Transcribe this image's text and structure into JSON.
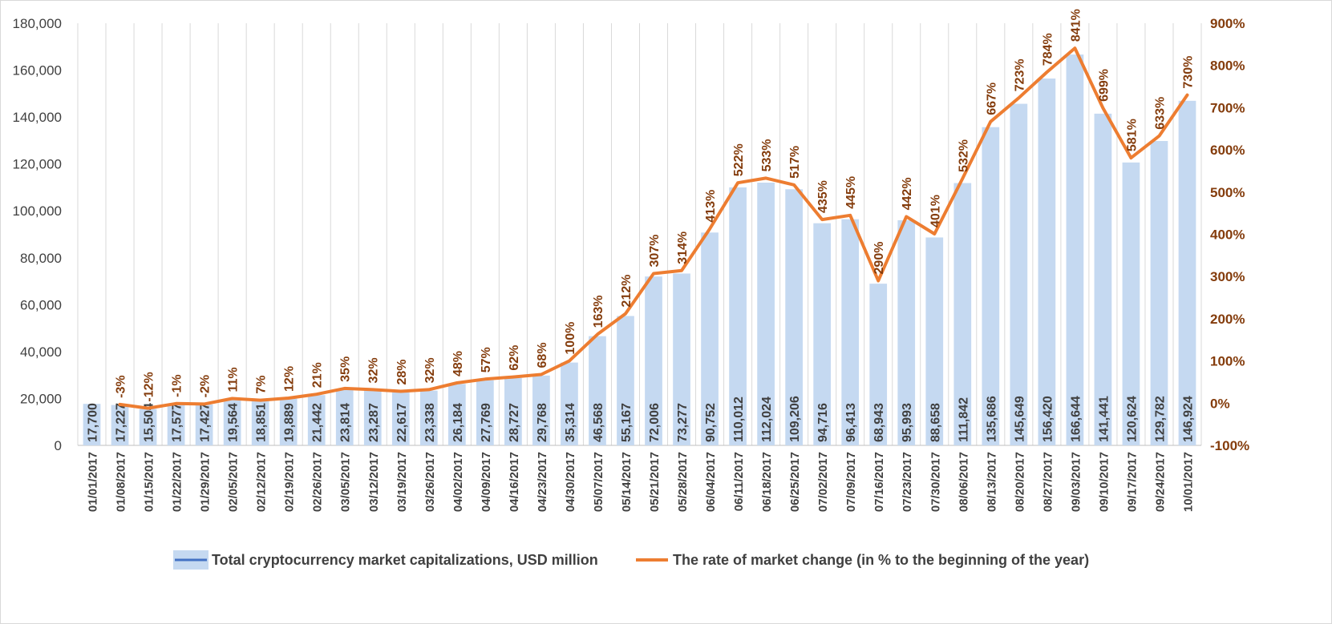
{
  "chart_data": {
    "type": "bar",
    "categories": [
      "01/01/2017",
      "01/08/2017",
      "01/15/2017",
      "01/22/2017",
      "01/29/2017",
      "02/05/2017",
      "02/12/2017",
      "02/19/2017",
      "02/26/2017",
      "03/05/2017",
      "03/12/2017",
      "03/19/2017",
      "03/26/2017",
      "04/02/2017",
      "04/09/2017",
      "04/16/2017",
      "04/23/2017",
      "04/30/2017",
      "05/07/2017",
      "05/14/2017",
      "05/21/2017",
      "05/28/2017",
      "06/04/2017",
      "06/11/2017",
      "06/18/2017",
      "06/25/2017",
      "07/02/2017",
      "07/09/2017",
      "07/16/2017",
      "07/23/2017",
      "07/30/2017",
      "08/06/2017",
      "08/13/2017",
      "08/20/2017",
      "08/27/2017",
      "09/03/2017",
      "09/10/2017",
      "09/17/2017",
      "09/24/2017",
      "10/01/2017"
    ],
    "series": [
      {
        "name": "Total cryptocurrency market capitalizations, USD million",
        "type": "bar",
        "axis": "left",
        "color": "#c5d9f1",
        "values": [
          17700,
          17227,
          15504,
          17577,
          17427,
          19564,
          18851,
          19889,
          21442,
          23814,
          23287,
          22617,
          23338,
          26184,
          27769,
          28727,
          29768,
          35314,
          46568,
          55167,
          72006,
          73277,
          90752,
          110012,
          112024,
          109206,
          94716,
          96413,
          68943,
          95993,
          88658,
          111842,
          135686,
          145649,
          156420,
          166644,
          141441,
          120624,
          129782,
          146924
        ],
        "labels": [
          "17,700",
          "17,227",
          "15,504",
          "17,577",
          "17,427",
          "19,564",
          "18,851",
          "19,889",
          "21,442",
          "23,814",
          "23,287",
          "22,617",
          "23,338",
          "26,184",
          "27,769",
          "28,727",
          "29,768",
          "35,314",
          "46,568",
          "55,167",
          "72,006",
          "73,277",
          "90,752",
          "110,012",
          "112,024",
          "109,206",
          "94,716",
          "96,413",
          "68,943",
          "95,993",
          "88,658",
          "111,842",
          "135,686",
          "145,649",
          "156,420",
          "166,644",
          "141,441",
          "120,624",
          "129,782",
          "146,924"
        ]
      },
      {
        "name": "The rate of market change (in % to the beginning of the year)",
        "type": "line",
        "axis": "right",
        "color": "#ed7d31",
        "values": [
          null,
          -3,
          -12,
          -1,
          -2,
          11,
          7,
          12,
          21,
          35,
          32,
          28,
          32,
          48,
          57,
          62,
          68,
          100,
          163,
          212,
          307,
          314,
          413,
          522,
          533,
          517,
          435,
          445,
          290,
          442,
          401,
          532,
          667,
          723,
          784,
          841,
          699,
          581,
          633,
          730
        ],
        "labels": [
          "",
          "-3%",
          "-12%",
          "-1%",
          "-2%",
          "11%",
          "7%",
          "12%",
          "21%",
          "35%",
          "32%",
          "28%",
          "32%",
          "48%",
          "57%",
          "62%",
          "68%",
          "100%",
          "163%",
          "212%",
          "307%",
          "314%",
          "413%",
          "522%",
          "533%",
          "517%",
          "435%",
          "445%",
          "290%",
          "442%",
          "401%",
          "532%",
          "667%",
          "723%",
          "784%",
          "841%",
          "699%",
          "581%",
          "633%",
          "730%"
        ]
      }
    ],
    "left_axis": {
      "ylim": [
        0,
        180000
      ],
      "ticks": [
        0,
        20000,
        40000,
        60000,
        80000,
        100000,
        120000,
        140000,
        160000,
        180000
      ],
      "tick_labels": [
        "0",
        "20,000",
        "40,000",
        "60,000",
        "80,000",
        "100,000",
        "120,000",
        "140,000",
        "160,000",
        "180,000"
      ]
    },
    "right_axis": {
      "ylim": [
        -100,
        900
      ],
      "ticks": [
        -100,
        0,
        100,
        200,
        300,
        400,
        500,
        600,
        700,
        800,
        900
      ],
      "tick_labels": [
        "-100%",
        "0%",
        "100%",
        "200%",
        "300%",
        "400%",
        "500%",
        "600%",
        "700%",
        "800%",
        "900%"
      ],
      "color": "#843c0c"
    },
    "grid": "vertical",
    "legend_position": "bottom",
    "title": "",
    "xlabel": "",
    "ylabel": ""
  }
}
